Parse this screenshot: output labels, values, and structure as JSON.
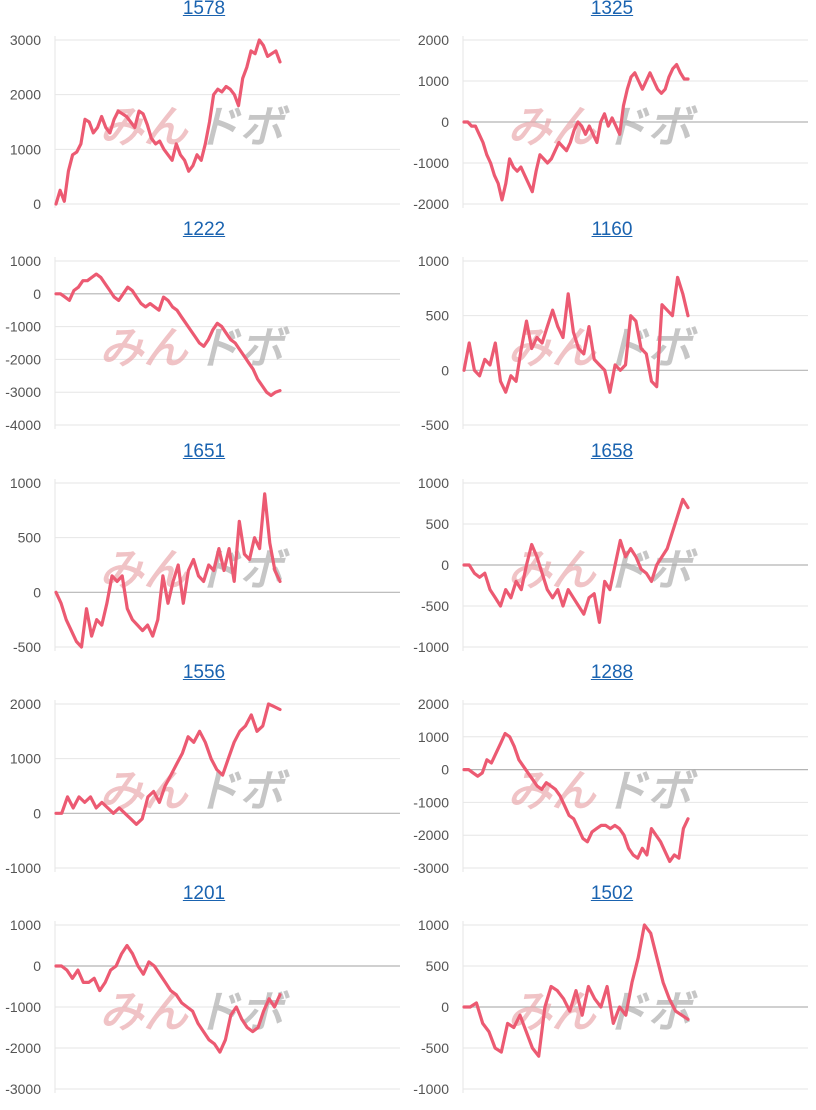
{
  "watermark": {
    "pink_text": "みん",
    "gray_text": "ドボ",
    "pink_color": "#e9a4a8",
    "gray_color": "#a9a9a9"
  },
  "colors": {
    "line": "#ec5a72",
    "grid": "#e6e6e6",
    "zero_line": "#b4b4b4",
    "title": "#1a63b0",
    "tick": "#555555"
  },
  "chart_data": [
    {
      "type": "line",
      "title": "1578",
      "yticks": [
        0,
        1000,
        2000,
        3000
      ],
      "ylim": [
        0,
        3000
      ],
      "values": [
        0,
        250,
        50,
        600,
        900,
        950,
        1100,
        1550,
        1500,
        1300,
        1400,
        1600,
        1400,
        1300,
        1550,
        1700,
        1650,
        1600,
        1500,
        1400,
        1700,
        1650,
        1450,
        1200,
        1100,
        1150,
        1000,
        900,
        800,
        1100,
        900,
        800,
        600,
        700,
        900,
        800,
        1100,
        1500,
        2000,
        2100,
        2050,
        2150,
        2100,
        2000,
        1800,
        2300,
        2500,
        2800,
        2750,
        3000,
        2900,
        2700,
        2750,
        2800,
        2600
      ]
    },
    {
      "type": "line",
      "title": "1325",
      "yticks": [
        -2000,
        -1000,
        0,
        1000,
        2000
      ],
      "ylim": [
        -2000,
        2000
      ],
      "values": [
        0,
        0,
        -100,
        -100,
        -300,
        -500,
        -800,
        -1000,
        -1300,
        -1500,
        -1900,
        -1500,
        -900,
        -1100,
        -1200,
        -1100,
        -1300,
        -1500,
        -1700,
        -1200,
        -800,
        -900,
        -1000,
        -900,
        -700,
        -500,
        -600,
        -700,
        -500,
        -200,
        0,
        -100,
        -300,
        -100,
        -300,
        -500,
        0,
        200,
        -100,
        100,
        -100,
        -300,
        400,
        800,
        1100,
        1200,
        1000,
        800,
        1000,
        1200,
        1000,
        800,
        700,
        800,
        1100,
        1300,
        1400,
        1200,
        1050,
        1050
      ]
    },
    {
      "type": "line",
      "title": "1222",
      "yticks": [
        -4000,
        -3000,
        -2000,
        -1000,
        0,
        1000
      ],
      "ylim": [
        -4000,
        1000
      ],
      "values": [
        0,
        0,
        -100,
        -200,
        100,
        200,
        400,
        400,
        500,
        600,
        500,
        300,
        100,
        -100,
        -200,
        0,
        200,
        100,
        -100,
        -300,
        -400,
        -300,
        -400,
        -500,
        -100,
        -200,
        -400,
        -500,
        -700,
        -900,
        -1100,
        -1300,
        -1500,
        -1600,
        -1400,
        -1100,
        -900,
        -1000,
        -1200,
        -1400,
        -1500,
        -1700,
        -1900,
        -2100,
        -2300,
        -2600,
        -2800,
        -3000,
        -3100,
        -3000,
        -2950
      ]
    },
    {
      "type": "line",
      "title": "1160",
      "yticks": [
        -500,
        0,
        500,
        1000
      ],
      "ylim": [
        -500,
        1000
      ],
      "values": [
        0,
        250,
        0,
        -50,
        100,
        50,
        250,
        -100,
        -200,
        -50,
        -100,
        200,
        450,
        200,
        300,
        250,
        400,
        550,
        400,
        300,
        700,
        350,
        200,
        150,
        400,
        100,
        50,
        0,
        -200,
        50,
        0,
        50,
        500,
        450,
        200,
        150,
        -100,
        -150,
        600,
        550,
        500,
        850,
        700,
        500
      ]
    },
    {
      "type": "line",
      "title": "1651",
      "yticks": [
        -500,
        0,
        500,
        1000
      ],
      "ylim": [
        -500,
        1000
      ],
      "values": [
        0,
        -100,
        -250,
        -350,
        -450,
        -500,
        -150,
        -400,
        -250,
        -300,
        -100,
        150,
        100,
        150,
        -150,
        -250,
        -300,
        -350,
        -300,
        -400,
        -250,
        150,
        -100,
        100,
        250,
        -100,
        200,
        300,
        150,
        100,
        250,
        200,
        400,
        200,
        400,
        100,
        650,
        350,
        300,
        500,
        400,
        900,
        450,
        200,
        100
      ]
    },
    {
      "type": "line",
      "title": "1658",
      "yticks": [
        -1000,
        -500,
        0,
        500,
        1000
      ],
      "ylim": [
        -1000,
        1000
      ],
      "values": [
        0,
        0,
        -100,
        -150,
        -100,
        -300,
        -400,
        -500,
        -300,
        -400,
        -200,
        -300,
        0,
        250,
        100,
        -100,
        -300,
        -400,
        -300,
        -500,
        -300,
        -400,
        -500,
        -600,
        -400,
        -350,
        -700,
        -200,
        -300,
        0,
        300,
        100,
        200,
        100,
        -50,
        -100,
        -200,
        0,
        100,
        200,
        400,
        600,
        800,
        700
      ]
    },
    {
      "type": "line",
      "title": "1556",
      "yticks": [
        -1000,
        0,
        1000,
        2000
      ],
      "ylim": [
        -1000,
        2000
      ],
      "values": [
        0,
        0,
        300,
        100,
        300,
        200,
        300,
        100,
        200,
        100,
        0,
        100,
        0,
        -100,
        -200,
        -100,
        300,
        400,
        200,
        500,
        700,
        900,
        1100,
        1400,
        1300,
        1500,
        1300,
        1000,
        800,
        700,
        1000,
        1300,
        1500,
        1600,
        1800,
        1500,
        1600,
        2000,
        1950,
        1900
      ]
    },
    {
      "type": "line",
      "title": "1288",
      "yticks": [
        -3000,
        -2000,
        -1000,
        0,
        1000,
        2000
      ],
      "ylim": [
        -3000,
        2000
      ],
      "values": [
        0,
        0,
        -100,
        -200,
        -100,
        300,
        200,
        500,
        800,
        1100,
        1000,
        700,
        300,
        100,
        -100,
        -300,
        -500,
        -600,
        -400,
        -500,
        -600,
        -800,
        -1100,
        -1400,
        -1500,
        -1800,
        -2100,
        -2200,
        -1900,
        -1800,
        -1700,
        -1700,
        -1800,
        -1700,
        -1800,
        -2000,
        -2400,
        -2600,
        -2700,
        -2400,
        -2600,
        -1800,
        -2000,
        -2200,
        -2500,
        -2800,
        -2600,
        -2700,
        -1800,
        -1500
      ]
    },
    {
      "type": "line",
      "title": "1201",
      "yticks": [
        -3000,
        -2000,
        -1000,
        0,
        1000
      ],
      "ylim": [
        -3000,
        1000
      ],
      "values": [
        0,
        0,
        -100,
        -300,
        -100,
        -400,
        -400,
        -300,
        -600,
        -400,
        -100,
        0,
        300,
        500,
        300,
        0,
        -200,
        100,
        0,
        -200,
        -400,
        -600,
        -700,
        -900,
        -1000,
        -1100,
        -1400,
        -1600,
        -1800,
        -1900,
        -2100,
        -1800,
        -1200,
        -1000,
        -1300,
        -1500,
        -1600,
        -1500,
        -1100,
        -800,
        -1000,
        -700
      ]
    },
    {
      "type": "line",
      "title": "1502",
      "yticks": [
        -1000,
        -500,
        0,
        500,
        1000
      ],
      "ylim": [
        -1000,
        1000
      ],
      "values": [
        0,
        0,
        50,
        -200,
        -300,
        -500,
        -550,
        -200,
        -250,
        -100,
        -300,
        -500,
        -600,
        0,
        250,
        200,
        100,
        -50,
        200,
        -100,
        250,
        100,
        0,
        250,
        -200,
        0,
        -100,
        300,
        600,
        1000,
        900,
        600,
        300,
        100,
        -50,
        -100,
        -150
      ]
    }
  ]
}
